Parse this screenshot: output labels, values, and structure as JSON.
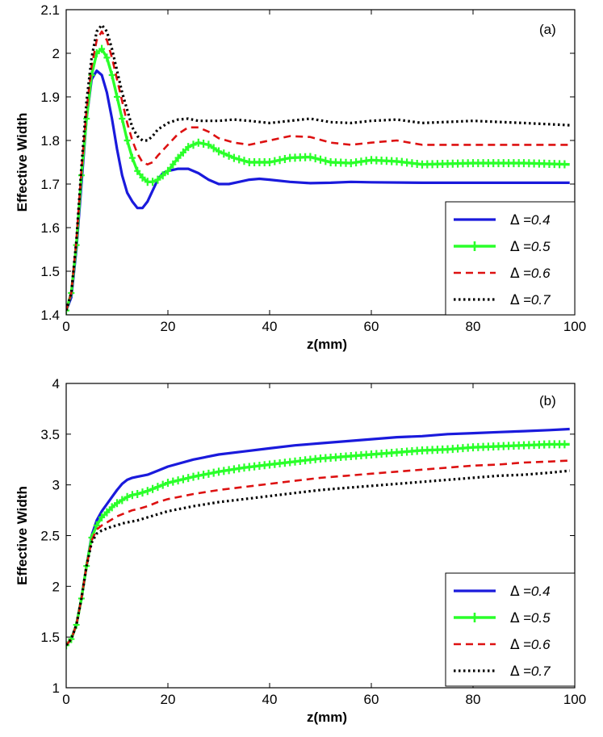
{
  "colors": {
    "blue": "#1a1adc",
    "green": "#2aff2a",
    "red": "#dd1111",
    "black": "#000000"
  },
  "chart_data": [
    {
      "type": "line",
      "panel": "(a)",
      "xlabel": "z(mm)",
      "ylabel": "Effective Width",
      "xlim": [
        0,
        100
      ],
      "ylim": [
        1.4,
        2.1
      ],
      "xticks": [
        0,
        20,
        40,
        60,
        80,
        100
      ],
      "yticks": [
        1.4,
        1.5,
        1.6,
        1.7,
        1.8,
        1.9,
        2.0,
        2.1
      ],
      "ytick_labels": [
        "1.4",
        "1.5",
        "1.6",
        "1.7",
        "1.8",
        "1.9",
        "2",
        "2.1"
      ],
      "legend_position": "lower-right",
      "series": [
        {
          "name": "=0.4",
          "symbol": "Δ",
          "color": "#1a1adc",
          "style": "solid",
          "x": [
            0,
            1,
            2,
            3,
            4,
            5,
            6,
            7,
            8,
            9,
            10,
            11,
            12,
            13,
            14,
            15,
            16,
            17,
            18,
            19,
            20,
            22,
            24,
            26,
            28,
            30,
            32,
            34,
            36,
            38,
            40,
            44,
            48,
            52,
            56,
            60,
            70,
            80,
            90,
            99
          ],
          "y": [
            1.41,
            1.44,
            1.55,
            1.7,
            1.85,
            1.94,
            1.96,
            1.95,
            1.91,
            1.85,
            1.78,
            1.72,
            1.68,
            1.66,
            1.645,
            1.645,
            1.66,
            1.685,
            1.71,
            1.725,
            1.73,
            1.735,
            1.735,
            1.725,
            1.71,
            1.7,
            1.7,
            1.705,
            1.71,
            1.712,
            1.71,
            1.705,
            1.702,
            1.703,
            1.705,
            1.704,
            1.703,
            1.703,
            1.703,
            1.703
          ]
        },
        {
          "name": "=0.5",
          "symbol": "Δ",
          "color": "#2aff2a",
          "style": "solid-markers",
          "x": [
            0,
            1,
            2,
            3,
            4,
            5,
            6,
            7,
            8,
            9,
            10,
            11,
            12,
            13,
            14,
            15,
            16,
            17,
            18,
            20,
            22,
            24,
            26,
            28,
            30,
            33,
            36,
            40,
            44,
            48,
            52,
            56,
            60,
            65,
            70,
            80,
            90,
            99
          ],
          "y": [
            1.41,
            1.45,
            1.56,
            1.72,
            1.85,
            1.95,
            2.0,
            2.01,
            1.99,
            1.95,
            1.9,
            1.85,
            1.8,
            1.76,
            1.73,
            1.715,
            1.705,
            1.705,
            1.71,
            1.73,
            1.76,
            1.785,
            1.795,
            1.79,
            1.775,
            1.76,
            1.75,
            1.75,
            1.76,
            1.762,
            1.75,
            1.748,
            1.755,
            1.752,
            1.745,
            1.748,
            1.748,
            1.745
          ]
        },
        {
          "name": "=0.6",
          "symbol": "Δ",
          "color": "#dd1111",
          "style": "dashed",
          "x": [
            0,
            1,
            2,
            3,
            4,
            5,
            6,
            7,
            8,
            9,
            10,
            11,
            12,
            13,
            14,
            15,
            16,
            17,
            18,
            20,
            22,
            24,
            26,
            28,
            30,
            33,
            36,
            40,
            44,
            48,
            52,
            56,
            60,
            65,
            70,
            80,
            90,
            99
          ],
          "y": [
            1.41,
            1.45,
            1.57,
            1.73,
            1.87,
            1.97,
            2.03,
            2.05,
            2.03,
            1.99,
            1.94,
            1.89,
            1.84,
            1.8,
            1.77,
            1.75,
            1.745,
            1.75,
            1.765,
            1.79,
            1.815,
            1.83,
            1.83,
            1.82,
            1.805,
            1.795,
            1.79,
            1.8,
            1.81,
            1.808,
            1.795,
            1.79,
            1.795,
            1.8,
            1.79,
            1.79,
            1.79,
            1.79
          ]
        },
        {
          "name": "=0.7",
          "symbol": "Δ",
          "color": "#000000",
          "style": "dotted",
          "x": [
            0,
            1,
            2,
            3,
            4,
            5,
            6,
            7,
            8,
            9,
            10,
            11,
            12,
            13,
            14,
            15,
            16,
            17,
            18,
            20,
            22,
            24,
            26,
            28,
            30,
            33,
            36,
            40,
            44,
            48,
            52,
            56,
            60,
            65,
            70,
            80,
            90,
            99
          ],
          "y": [
            1.41,
            1.45,
            1.57,
            1.74,
            1.89,
            1.99,
            2.05,
            2.065,
            2.05,
            2.01,
            1.96,
            1.91,
            1.87,
            1.83,
            1.81,
            1.8,
            1.8,
            1.81,
            1.825,
            1.84,
            1.848,
            1.85,
            1.845,
            1.845,
            1.845,
            1.848,
            1.845,
            1.84,
            1.845,
            1.85,
            1.842,
            1.84,
            1.845,
            1.848,
            1.84,
            1.845,
            1.84,
            1.835
          ]
        }
      ]
    },
    {
      "type": "line",
      "panel": "(b)",
      "xlabel": "z(mm)",
      "ylabel": "Effective Width",
      "xlim": [
        0,
        100
      ],
      "ylim": [
        1,
        4
      ],
      "xticks": [
        0,
        20,
        40,
        60,
        80,
        100
      ],
      "yticks": [
        1,
        1.5,
        2,
        2.5,
        3,
        3.5,
        4
      ],
      "ytick_labels": [
        "1",
        "1.5",
        "2",
        "2.5",
        "3",
        "3.5",
        "4"
      ],
      "legend_position": "lower-right",
      "series": [
        {
          "name": "=0.4",
          "symbol": "Δ",
          "color": "#1a1adc",
          "style": "solid",
          "x": [
            0,
            1,
            2,
            3,
            4,
            5,
            6,
            7,
            8,
            9,
            10,
            11,
            12,
            13,
            14,
            16,
            18,
            20,
            25,
            30,
            35,
            40,
            45,
            50,
            55,
            60,
            65,
            70,
            75,
            80,
            85,
            90,
            95,
            99
          ],
          "y": [
            1.42,
            1.48,
            1.62,
            1.88,
            2.2,
            2.5,
            2.65,
            2.74,
            2.81,
            2.88,
            2.95,
            3.01,
            3.05,
            3.07,
            3.08,
            3.1,
            3.14,
            3.18,
            3.25,
            3.3,
            3.33,
            3.36,
            3.39,
            3.41,
            3.43,
            3.45,
            3.47,
            3.48,
            3.5,
            3.51,
            3.52,
            3.53,
            3.54,
            3.55
          ]
        },
        {
          "name": "=0.5",
          "symbol": "Δ",
          "color": "#2aff2a",
          "style": "solid-markers",
          "x": [
            0,
            1,
            2,
            3,
            4,
            5,
            6,
            7,
            8,
            9,
            10,
            11,
            12,
            13,
            14,
            16,
            18,
            20,
            25,
            30,
            35,
            40,
            45,
            50,
            55,
            60,
            65,
            70,
            75,
            80,
            85,
            90,
            95,
            99
          ],
          "y": [
            1.42,
            1.48,
            1.62,
            1.88,
            2.2,
            2.48,
            2.6,
            2.68,
            2.73,
            2.78,
            2.82,
            2.85,
            2.88,
            2.9,
            2.91,
            2.94,
            2.98,
            3.02,
            3.08,
            3.13,
            3.17,
            3.2,
            3.23,
            3.26,
            3.28,
            3.3,
            3.32,
            3.34,
            3.35,
            3.37,
            3.38,
            3.39,
            3.4,
            3.4
          ]
        },
        {
          "name": "=0.6",
          "symbol": "Δ",
          "color": "#dd1111",
          "style": "dashed",
          "x": [
            0,
            1,
            2,
            3,
            4,
            5,
            6,
            7,
            8,
            9,
            10,
            11,
            12,
            13,
            14,
            16,
            18,
            20,
            25,
            30,
            35,
            40,
            45,
            50,
            55,
            60,
            65,
            70,
            75,
            80,
            85,
            90,
            95,
            99
          ],
          "y": [
            1.42,
            1.48,
            1.62,
            1.88,
            2.2,
            2.45,
            2.56,
            2.6,
            2.63,
            2.66,
            2.69,
            2.71,
            2.73,
            2.75,
            2.76,
            2.79,
            2.83,
            2.86,
            2.91,
            2.95,
            2.98,
            3.01,
            3.04,
            3.07,
            3.09,
            3.11,
            3.13,
            3.15,
            3.17,
            3.19,
            3.2,
            3.22,
            3.23,
            3.24
          ]
        },
        {
          "name": "=0.7",
          "symbol": "Δ",
          "color": "#000000",
          "style": "dotted",
          "x": [
            0,
            1,
            2,
            3,
            4,
            5,
            6,
            7,
            8,
            9,
            10,
            11,
            12,
            13,
            14,
            16,
            18,
            20,
            25,
            30,
            35,
            40,
            45,
            50,
            55,
            60,
            65,
            70,
            75,
            80,
            85,
            90,
            95,
            99
          ],
          "y": [
            1.42,
            1.48,
            1.62,
            1.88,
            2.2,
            2.43,
            2.52,
            2.55,
            2.57,
            2.59,
            2.6,
            2.62,
            2.63,
            2.64,
            2.65,
            2.68,
            2.71,
            2.74,
            2.79,
            2.83,
            2.86,
            2.89,
            2.92,
            2.95,
            2.97,
            2.99,
            3.01,
            3.03,
            3.05,
            3.07,
            3.09,
            3.1,
            3.12,
            3.14
          ]
        }
      ]
    }
  ]
}
